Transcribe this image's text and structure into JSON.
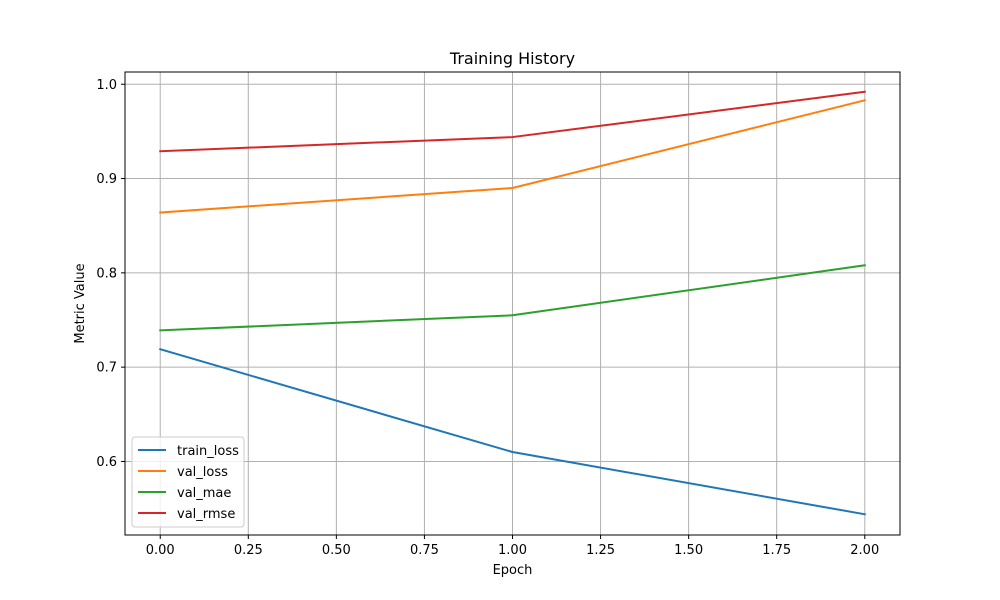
{
  "chart_data": {
    "type": "line",
    "title": "Training History",
    "xlabel": "Epoch",
    "ylabel": "Metric Value",
    "x": [
      0,
      1,
      2
    ],
    "xlim": [
      -0.1,
      2.1
    ],
    "ylim": [
      0.522,
      1.013
    ],
    "xticks": [
      0.0,
      0.25,
      0.5,
      0.75,
      1.0,
      1.25,
      1.5,
      1.75,
      2.0
    ],
    "xtick_labels": [
      "0.00",
      "0.25",
      "0.50",
      "0.75",
      "1.00",
      "1.25",
      "1.50",
      "1.75",
      "2.00"
    ],
    "yticks": [
      0.6,
      0.7,
      0.8,
      0.9,
      1.0
    ],
    "ytick_labels": [
      "0.6",
      "0.7",
      "0.8",
      "0.9",
      "1.0"
    ],
    "grid": true,
    "legend_position": "bottom-left",
    "series": [
      {
        "name": "train_loss",
        "color": "#1f77b4",
        "values": [
          0.719,
          0.61,
          0.544
        ]
      },
      {
        "name": "val_loss",
        "color": "#ff7f0e",
        "values": [
          0.864,
          0.89,
          0.983
        ]
      },
      {
        "name": "val_mae",
        "color": "#2ca02c",
        "values": [
          0.739,
          0.755,
          0.808
        ]
      },
      {
        "name": "val_rmse",
        "color": "#d62728",
        "values": [
          0.929,
          0.944,
          0.992
        ]
      }
    ]
  }
}
